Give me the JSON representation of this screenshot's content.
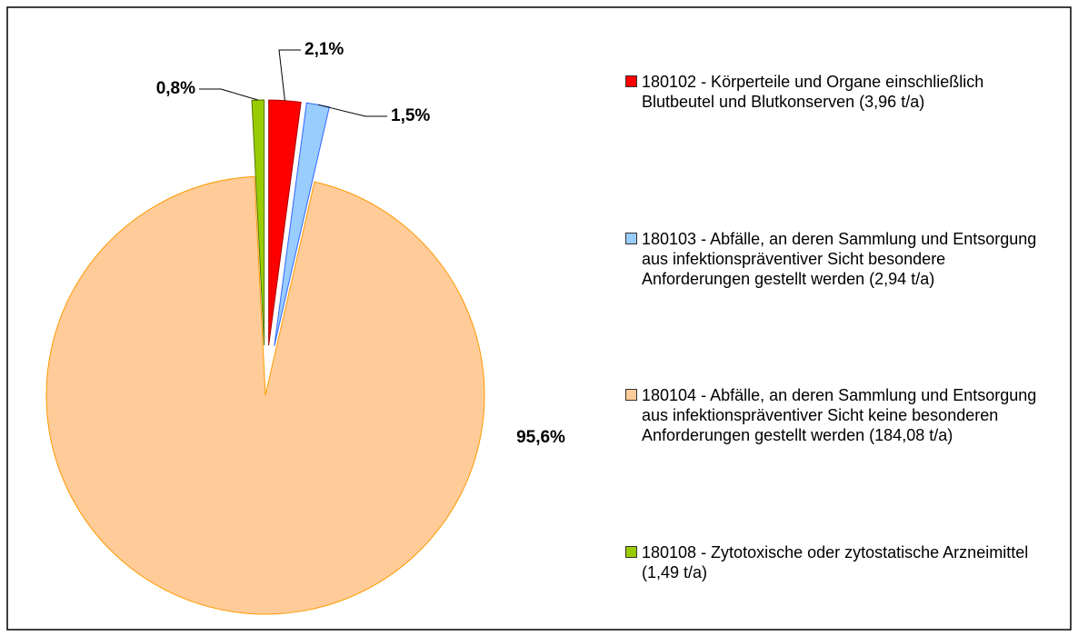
{
  "chart_data": {
    "type": "pie",
    "categories": [
      "180102 - Körperteile und Organe einschließlich Blutbeutel und Blutkonserven (3,96 t/a)",
      "180103 - Abfälle, an deren Sammlung und Entsorgung aus infektionspräventiver Sicht besondere Anforderungen gestellt werden (2,94 t/a)",
      "180104 - Abfälle, an deren Sammlung und Entsorgung aus infektionspräventiver Sicht keine besonderen Anforderungen gestellt werden (184,08 t/a)",
      "180108 - Zytotoxische oder zytostatische Arzneimittel (1,49 t/a)"
    ],
    "values": [
      2.1,
      1.5,
      95.6,
      0.8
    ],
    "value_labels": [
      "2,1%",
      "1,5%",
      "95,6%",
      "0,8%"
    ],
    "colors": [
      "#ff0000",
      "#99ccff",
      "#ffcc99",
      "#99cc00"
    ],
    "legend": "right"
  }
}
